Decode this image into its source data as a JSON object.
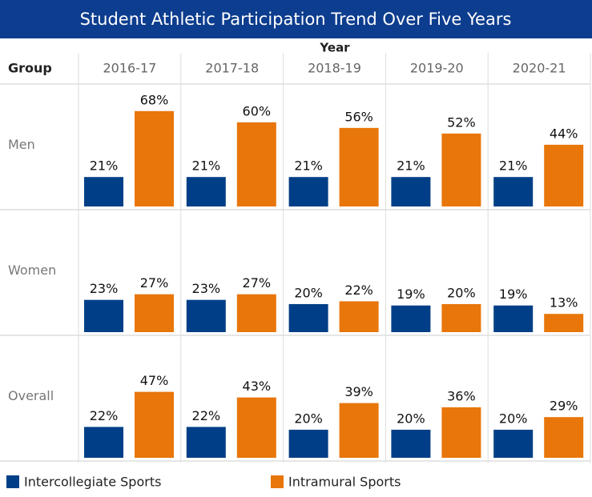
{
  "chart_data": {
    "type": "bar",
    "title": "Student Athletic Participation Trend Over Five Years",
    "column_header": "Year",
    "row_header": "Group",
    "categories": [
      "2016-17",
      "2017-18",
      "2018-19",
      "2019-20",
      "2020-21"
    ],
    "groups": [
      "Men",
      "Women",
      "Overall"
    ],
    "ylim": [
      0,
      85
    ],
    "series": [
      {
        "name": "Intercollegiate Sports",
        "color": "#003f87",
        "values": [
          [
            21,
            21,
            21,
            21,
            21
          ],
          [
            23,
            23,
            20,
            19,
            19
          ],
          [
            22,
            22,
            20,
            20,
            20
          ]
        ],
        "value_labels": [
          [
            "21%",
            "21%",
            "21%",
            "21%",
            "21%"
          ],
          [
            "23%",
            "23%",
            "20%",
            "19%",
            "19%"
          ],
          [
            "22%",
            "22%",
            "20%",
            "20%",
            "20%"
          ]
        ]
      },
      {
        "name": "Intramural Sports",
        "color": "#e8760a",
        "values": [
          [
            68,
            60,
            56,
            52,
            44
          ],
          [
            27,
            27,
            22,
            20,
            13
          ],
          [
            47,
            43,
            39,
            36,
            29
          ]
        ],
        "value_labels": [
          [
            "68%",
            "60%",
            "56%",
            "52%",
            "44%"
          ],
          [
            "27%",
            "27%",
            "22%",
            "20%",
            "13%"
          ],
          [
            "47%",
            "43%",
            "39%",
            "36%",
            "29%"
          ]
        ]
      }
    ]
  }
}
